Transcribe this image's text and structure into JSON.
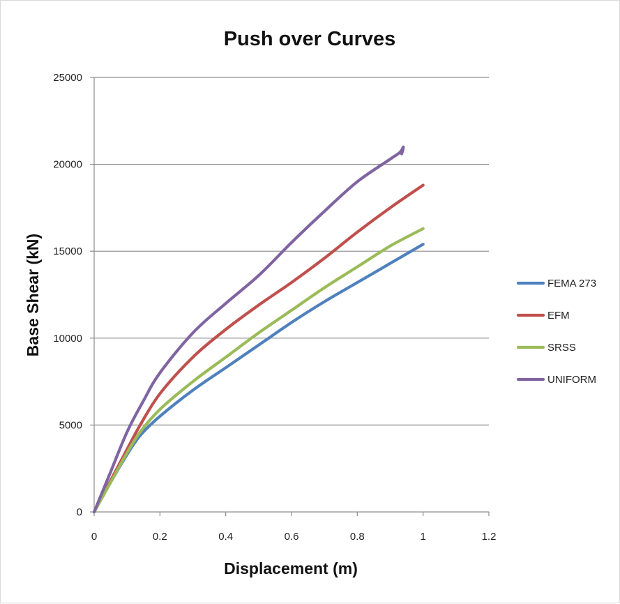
{
  "chart_data": {
    "type": "line",
    "title": "Push over Curves",
    "xlabel": "Displacement (m)",
    "ylabel": "Base Shear  (kN)",
    "xlim": [
      0,
      1.2
    ],
    "ylim": [
      0,
      25000
    ],
    "xticks": [
      "0",
      "0.2",
      "0.4",
      "0.6",
      "0.8",
      "1",
      "1.2"
    ],
    "yticks": [
      "0",
      "5000",
      "10000",
      "15000",
      "20000",
      "25000"
    ],
    "grid": "horizontal",
    "legend_position": "right",
    "series": [
      {
        "name": "FEMA 273",
        "color": "#4f81bd",
        "x": [
          0,
          0.05,
          0.1,
          0.14,
          0.2,
          0.3,
          0.4,
          0.5,
          0.6,
          0.7,
          0.8,
          0.9,
          1.0
        ],
        "y": [
          0,
          1700,
          3300,
          4400,
          5500,
          7000,
          8300,
          9600,
          10900,
          12100,
          13200,
          14300,
          15400
        ]
      },
      {
        "name": "EFM",
        "color": "#c0504d",
        "x": [
          0,
          0.05,
          0.1,
          0.14,
          0.2,
          0.3,
          0.4,
          0.5,
          0.6,
          0.7,
          0.8,
          0.9,
          1.0
        ],
        "y": [
          0,
          1800,
          3600,
          5000,
          6800,
          8900,
          10500,
          11900,
          13200,
          14600,
          16100,
          17500,
          18800
        ]
      },
      {
        "name": "SRSS",
        "color": "#9bbb59",
        "x": [
          0,
          0.05,
          0.1,
          0.14,
          0.2,
          0.3,
          0.4,
          0.5,
          0.6,
          0.7,
          0.8,
          0.9,
          1.0
        ],
        "y": [
          0,
          1700,
          3400,
          4600,
          5900,
          7500,
          8900,
          10300,
          11600,
          12900,
          14100,
          15300,
          16300
        ]
      },
      {
        "name": "UNIFORM",
        "color": "#8064a2",
        "x": [
          0,
          0.05,
          0.1,
          0.15,
          0.2,
          0.3,
          0.4,
          0.5,
          0.6,
          0.7,
          0.8,
          0.9,
          0.93,
          0.94,
          0.935
        ],
        "y": [
          0,
          2300,
          4600,
          6400,
          8000,
          10300,
          12000,
          13600,
          15500,
          17300,
          19000,
          20300,
          20700,
          21000,
          20600
        ]
      }
    ]
  }
}
